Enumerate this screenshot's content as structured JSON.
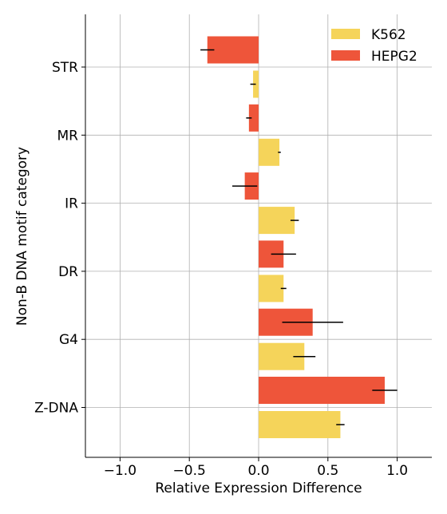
{
  "chart_data": {
    "type": "bar",
    "orientation": "horizontal",
    "categories": [
      "STR",
      "MR",
      "IR",
      "DR",
      "G4",
      "Z-DNA"
    ],
    "series": [
      {
        "name": "K562",
        "color": "#F5D45A",
        "values": [
          -0.04,
          0.15,
          0.26,
          0.18,
          0.33,
          0.59
        ],
        "errors": [
          0.02,
          0.01,
          0.03,
          0.02,
          0.08,
          0.03
        ]
      },
      {
        "name": "HEPG2",
        "color": "#EE553A",
        "values": [
          -0.37,
          -0.07,
          -0.1,
          0.18,
          0.39,
          0.91
        ],
        "errors": [
          0.05,
          0.02,
          0.09,
          0.09,
          0.22,
          0.09
        ]
      }
    ],
    "xlabel": "Relative Expression Difference",
    "ylabel": "Non-B DNA motif category",
    "xlim": [
      -1.25,
      1.25
    ],
    "xticks": [
      -1.0,
      -0.5,
      0.0,
      0.5,
      1.0
    ],
    "xtick_labels": [
      "−1.0",
      "−0.5",
      "0.0",
      "0.5",
      "1.0"
    ],
    "grid": true,
    "legend_position": "top-right"
  }
}
